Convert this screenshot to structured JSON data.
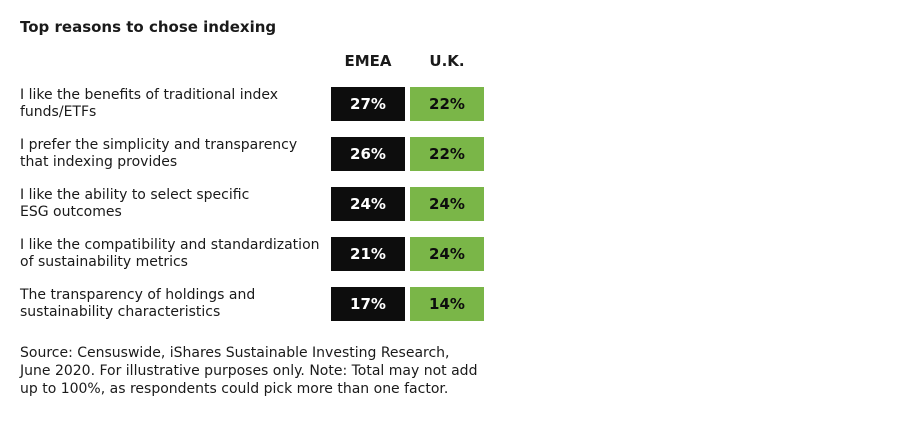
{
  "header": {
    "title": "Top reasons to chose indexing"
  },
  "table": {
    "columns": [
      "EMEA",
      "U.K."
    ],
    "column_colors": [
      "#0d0d0d",
      "#7ab648"
    ],
    "column_text_colors": [
      "#ffffff",
      "#0d0d0d"
    ],
    "rows": [
      {
        "label_lines": [
          "I like the benefits of traditional index",
          "funds/ETFs"
        ],
        "cells": [
          "27%",
          "22%"
        ]
      },
      {
        "label_lines": [
          "I prefer the simplicity and transparency",
          "that indexing provides"
        ],
        "cells": [
          "26%",
          "22%"
        ]
      },
      {
        "label_lines": [
          "I like the ability to select specific",
          "ESG outcomes"
        ],
        "cells": [
          "24%",
          "24%"
        ]
      },
      {
        "label_lines": [
          "I like the compatibility and standardization",
          "of sustainability metrics"
        ],
        "cells": [
          "21%",
          "24%"
        ]
      },
      {
        "label_lines": [
          "The transparency of holdings and",
          "sustainability characteristics"
        ],
        "cells": [
          "17%",
          "14%"
        ]
      }
    ]
  },
  "footer": {
    "source_lines": [
      "Source: Censuswide, iShares Sustainable Investing Research,",
      "June 2020. For illustrative purposes only. Note: Total may not add",
      "up to 100%, as respondents could pick more than one factor."
    ]
  }
}
